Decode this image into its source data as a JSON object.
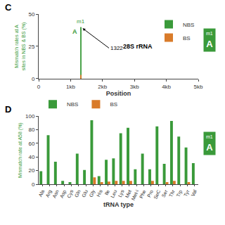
{
  "chart_data": [
    {
      "type": "bar",
      "panel_label": "C",
      "title": "28S rRNA",
      "x": [
        1322
      ],
      "series": [
        {
          "name": "NBS",
          "color": "#3a9a3a",
          "values": [
            40
          ]
        },
        {
          "name": "BS",
          "color": "#d97b2a",
          "values": [
            3
          ]
        }
      ],
      "xlabel": "Position",
      "ylabel": "Mismatch rates at A\nsites in NBS & BS (%)",
      "xlim": [
        0,
        5000
      ],
      "xticks": [
        0,
        {
          "value": 1000,
          "label": "1kb"
        },
        {
          "value": 2000,
          "label": "2kb"
        },
        {
          "value": 3000,
          "label": "3kb"
        },
        {
          "value": 4000,
          "label": "4kb"
        },
        {
          "value": 5000,
          "label": "5kb"
        }
      ],
      "ylim": [
        0,
        50
      ],
      "yticks": [
        0,
        25,
        50
      ],
      "annotations": [
        "m1",
        "A",
        "1322"
      ],
      "badge": {
        "texts": [
          "m1",
          "A"
        ],
        "color": "#3a9a3a"
      },
      "legend": "upper right",
      "grid": false
    },
    {
      "type": "bar",
      "panel_label": "D",
      "categories": [
        "Ala",
        "Arg",
        "Asn",
        "Asp",
        "Cys",
        "Gln",
        "Glu",
        "Gly",
        "His",
        "Ile",
        "Leu",
        "Lys",
        "Met",
        "Met-i",
        "Phe",
        "Pro",
        "SeC",
        "Ser",
        "Thr",
        "Trp",
        "Tyr",
        "Val"
      ],
      "series": [
        {
          "name": "NBS",
          "color": "#3a9a3a",
          "values": [
            19,
            72,
            33,
            5,
            3,
            45,
            21,
            94,
            12,
            36,
            38,
            75,
            83,
            22,
            45,
            22,
            85,
            30,
            93,
            70,
            54,
            31
          ]
        },
        {
          "name": "BS",
          "color": "#d97b2a",
          "values": [
            0,
            0,
            0,
            0,
            0,
            0,
            0,
            10,
            3,
            4,
            5,
            5,
            5,
            0,
            0,
            5,
            0,
            3,
            5,
            0,
            3,
            0
          ]
        }
      ],
      "xlabel": "tRNA type",
      "ylabel": "Mismatch rate at A58 (%)",
      "ylim": [
        0,
        100
      ],
      "yticks": [
        0,
        20,
        40,
        60,
        80,
        100
      ],
      "badge": {
        "texts": [
          "m1",
          "A"
        ],
        "color": "#3a9a3a"
      },
      "legend": "upper left",
      "grid": false
    }
  ]
}
